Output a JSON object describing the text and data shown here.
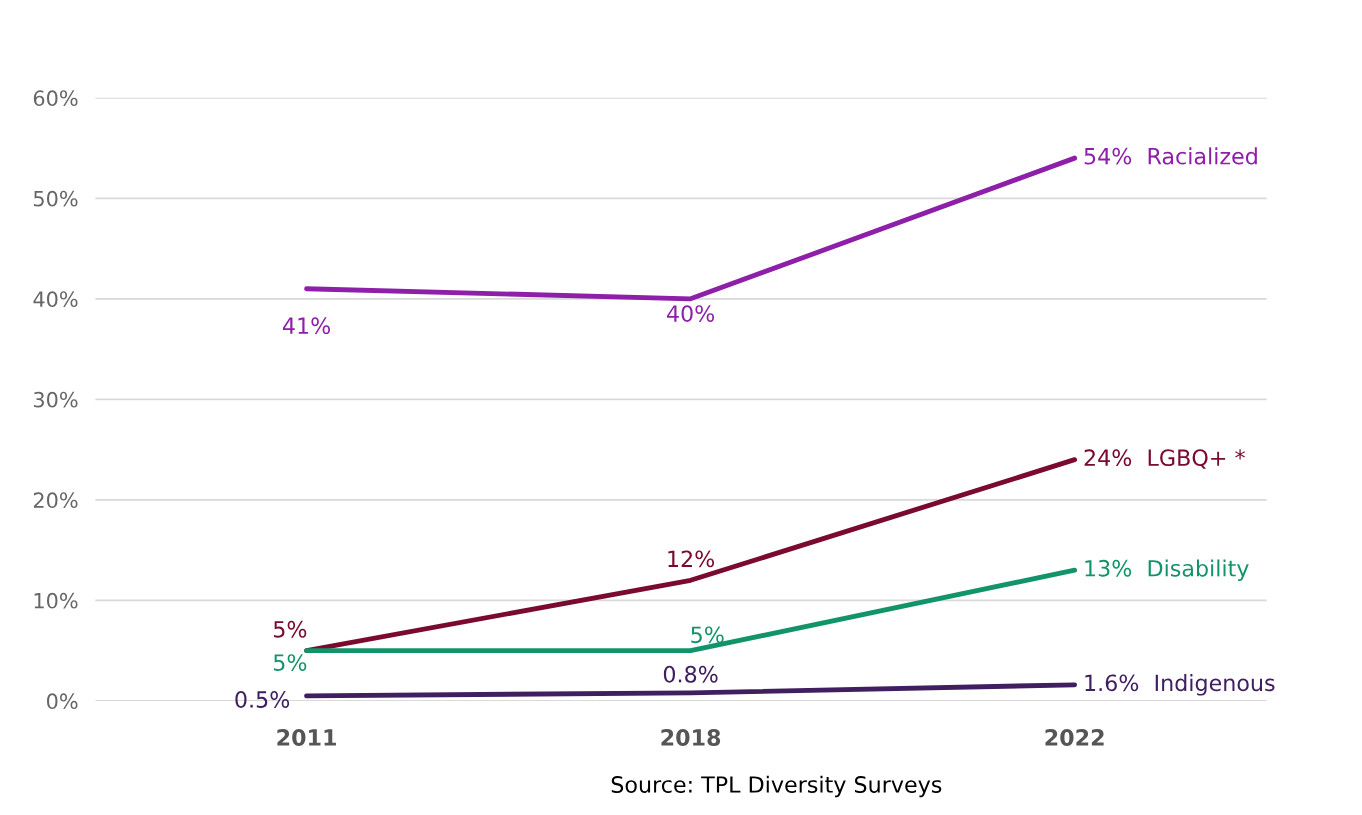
{
  "chart_data": {
    "type": "line",
    "categories": [
      "2011",
      "2018",
      "2022"
    ],
    "series": [
      {
        "name": "Racialized",
        "color": "#8e1fa8",
        "values": [
          41,
          40,
          54
        ],
        "value_labels": [
          "41%",
          "40%",
          "54%"
        ]
      },
      {
        "name": "LGBQ+ *",
        "color": "#7a0a2e",
        "values": [
          5,
          12,
          24
        ],
        "value_labels": [
          "5%",
          "12%",
          "24%"
        ]
      },
      {
        "name": "Disability",
        "color": "#12946a",
        "values": [
          5,
          5,
          13
        ],
        "value_labels": [
          "5%",
          "5%",
          "13%"
        ]
      },
      {
        "name": "Indigenous",
        "color": "#3f1f5f",
        "values": [
          0.5,
          0.8,
          1.6
        ],
        "value_labels": [
          "0.5%",
          "0.8%",
          "1.6%"
        ]
      }
    ],
    "ylim": [
      0,
      60
    ],
    "yticks": [
      {
        "value": 0,
        "label": "0%"
      },
      {
        "value": 10,
        "label": "10%"
      },
      {
        "value": 20,
        "label": "20%"
      },
      {
        "value": 30,
        "label": "30%"
      },
      {
        "value": 40,
        "label": "40%"
      },
      {
        "value": 50,
        "label": "50%"
      },
      {
        "value": 60,
        "label": "60%"
      }
    ],
    "grid": "y",
    "legend": false,
    "marker": "none",
    "line_style": "solid",
    "annotations": [
      "Source: TPL Diversity Surveys"
    ]
  }
}
